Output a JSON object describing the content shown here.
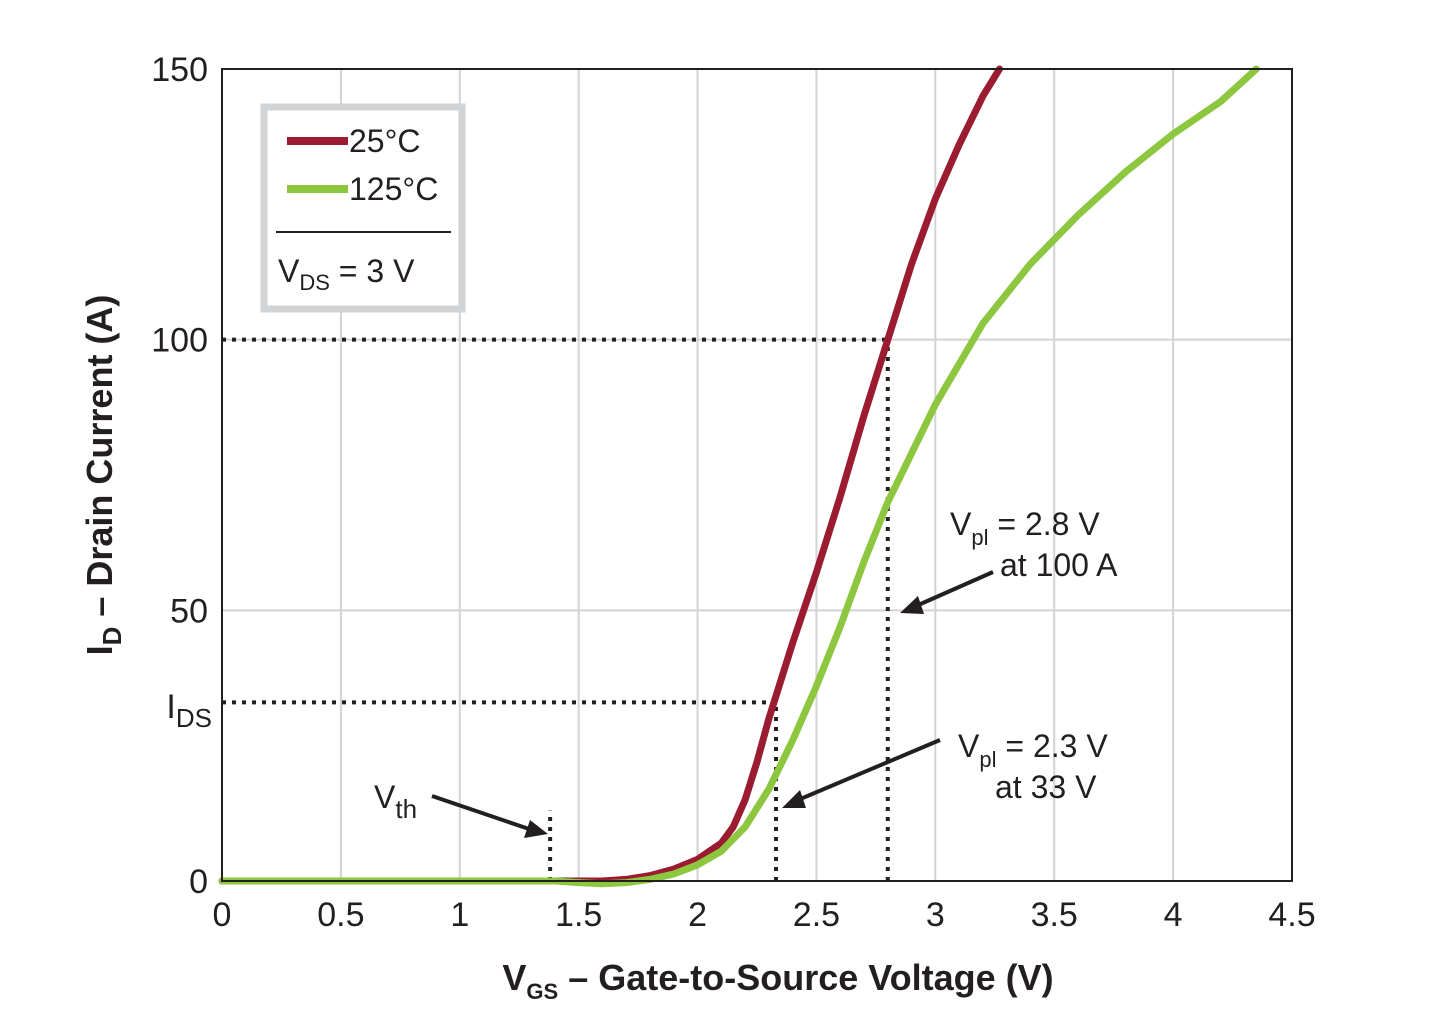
{
  "chart_data": {
    "type": "line",
    "xlabel": {
      "main": "V",
      "sub": "GS",
      "rest": " – Gate-to-Source Voltage (V)"
    },
    "ylabel": {
      "main": "I",
      "sub": "D",
      "rest": " – Drain Current (A)"
    },
    "xlim": [
      0,
      4.5
    ],
    "ylim": [
      0,
      150
    ],
    "grid": true,
    "legend_position": "top-left",
    "x_ticks": [
      {
        "value": 0,
        "label": "0"
      },
      {
        "value": 0.5,
        "label": "0.5"
      },
      {
        "value": 1,
        "label": "1"
      },
      {
        "value": 1.5,
        "label": "1.5"
      },
      {
        "value": 2,
        "label": "2"
      },
      {
        "value": 2.5,
        "label": "2.5"
      },
      {
        "value": 3,
        "label": "3"
      },
      {
        "value": 3.5,
        "label": "3.5"
      },
      {
        "value": 4,
        "label": "4"
      },
      {
        "value": 4.5,
        "label": "4.5"
      }
    ],
    "y_ticks": [
      {
        "value": 0,
        "label": "0"
      },
      {
        "value": 50,
        "label": "50"
      },
      {
        "value": 100,
        "label": "100"
      },
      {
        "value": 150,
        "label": "150"
      }
    ],
    "series": [
      {
        "name": "25°C",
        "color": "#9b1b30",
        "points": [
          [
            0,
            0
          ],
          [
            1.0,
            0
          ],
          [
            1.5,
            0
          ],
          [
            1.6,
            0
          ],
          [
            1.7,
            0.3
          ],
          [
            1.8,
            1.0
          ],
          [
            1.9,
            2.2
          ],
          [
            2.0,
            4.0
          ],
          [
            2.1,
            7.0
          ],
          [
            2.15,
            10.0
          ],
          [
            2.2,
            15.0
          ],
          [
            2.25,
            22.0
          ],
          [
            2.3,
            30.0
          ],
          [
            2.4,
            44.0
          ],
          [
            2.5,
            57.0
          ],
          [
            2.6,
            71.0
          ],
          [
            2.7,
            86.0
          ],
          [
            2.8,
            100.0
          ],
          [
            2.9,
            114.0
          ],
          [
            3.0,
            126.0
          ],
          [
            3.1,
            136.0
          ],
          [
            3.2,
            145.0
          ],
          [
            3.27,
            150.0
          ]
        ]
      },
      {
        "name": "125°C",
        "color": "#8dc63f",
        "points": [
          [
            0,
            0
          ],
          [
            1.0,
            0
          ],
          [
            1.4,
            0
          ],
          [
            1.5,
            -0.3
          ],
          [
            1.6,
            -0.5
          ],
          [
            1.7,
            -0.3
          ],
          [
            1.8,
            0.3
          ],
          [
            1.9,
            1.3
          ],
          [
            2.0,
            3.0
          ],
          [
            2.1,
            5.5
          ],
          [
            2.2,
            10.0
          ],
          [
            2.3,
            17.0
          ],
          [
            2.4,
            26.0
          ],
          [
            2.5,
            36.0
          ],
          [
            2.6,
            47.0
          ],
          [
            2.7,
            59.0
          ],
          [
            2.8,
            70.0
          ],
          [
            2.9,
            79.0
          ],
          [
            3.0,
            88.0
          ],
          [
            3.2,
            103.0
          ],
          [
            3.4,
            114.0
          ],
          [
            3.6,
            123.0
          ],
          [
            3.8,
            131.0
          ],
          [
            4.0,
            138.0
          ],
          [
            4.2,
            144.0
          ],
          [
            4.35,
            150.0
          ]
        ]
      }
    ],
    "legend": {
      "condition": {
        "main": "V",
        "sub": "DS",
        "rest": " = 3 V"
      }
    },
    "reference_lines": [
      {
        "type": "horizontal",
        "y": 100,
        "x_to": 2.8
      },
      {
        "type": "vertical",
        "x": 2.8,
        "y_to": 100
      },
      {
        "type": "horizontal",
        "y": 33,
        "x_to": 2.33
      },
      {
        "type": "vertical",
        "x": 2.33,
        "y_to": 33
      },
      {
        "type": "vertical",
        "x": 1.38,
        "y_to": 13
      }
    ],
    "annotations": {
      "ids_label": {
        "main": "I",
        "sub": "DS",
        "y": 33
      },
      "vth": {
        "main": "V",
        "sub": "th"
      },
      "vpl_25": {
        "main": "V",
        "sub": "pl",
        "rest": " = 2.8 V",
        "line2": "at 100 A"
      },
      "vpl_125": {
        "main": "V",
        "sub": "pl",
        "rest": " = 2.3 V",
        "line2": "at 33 V"
      }
    }
  }
}
